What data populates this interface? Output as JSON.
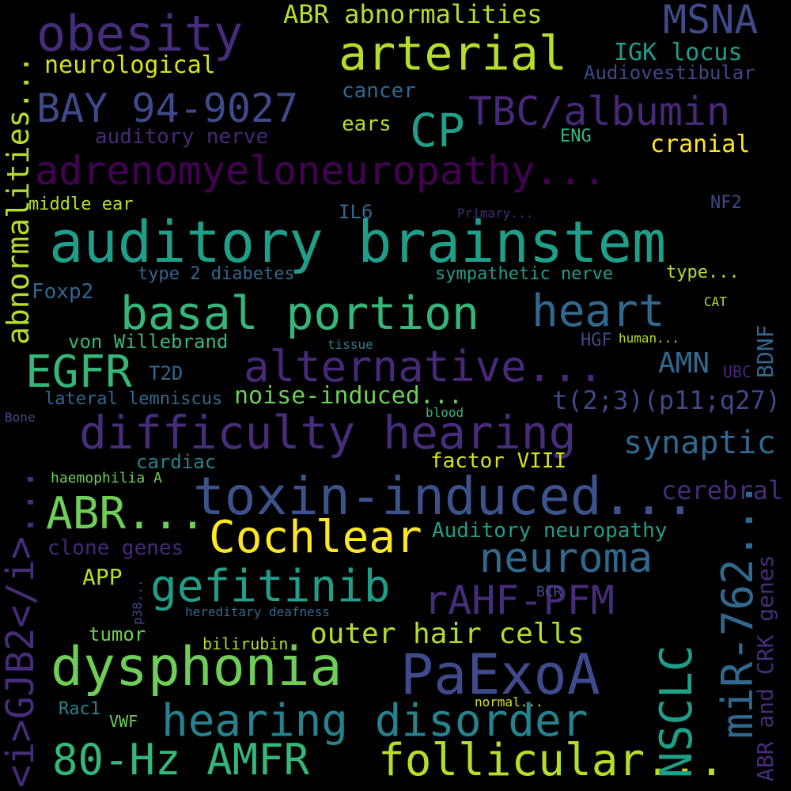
{
  "palette": {
    "purple": "#472c7a",
    "indigo": "#3e4a89",
    "blue": "#31688e",
    "teal": "#26828e",
    "teal_green": "#1f9e89",
    "green": "#35b779",
    "lime": "#6ece58",
    "yellow_green": "#b5de2b",
    "yellow": "#fde725",
    "dark_purple": "#440154"
  },
  "words": [
    {
      "id": "auditory-brainstem",
      "text": "auditory brainstem",
      "color": "#1f9e89"
    },
    {
      "id": "adrenomyeloneuropathy",
      "text": "adrenomyeloneuropathy...",
      "color": "#440154"
    },
    {
      "id": "toxin-induced",
      "text": "toxin-induced...",
      "color": "#3b528b"
    },
    {
      "id": "difficulty-hearing",
      "text": "difficulty hearing",
      "color": "#472c7a"
    },
    {
      "id": "basal-portion",
      "text": "basal portion",
      "color": "#35b779"
    },
    {
      "id": "alternative",
      "text": "alternative...",
      "color": "#482878"
    },
    {
      "id": "dysphonia",
      "text": "dysphonia",
      "color": "#6ece58"
    },
    {
      "id": "hearing-disorder",
      "text": "hearing disorder",
      "color": "#26828e"
    },
    {
      "id": "follicular",
      "text": "follicular...",
      "color": "#b5de2b"
    },
    {
      "id": "80hz-amfr",
      "text": "80-Hz AMFR",
      "color": "#35b779"
    },
    {
      "id": "paexoa",
      "text": "PaExoA",
      "color": "#3e4a89"
    },
    {
      "id": "obesity",
      "text": "obesity",
      "color": "#472c7a"
    },
    {
      "id": "arterial",
      "text": "arterial",
      "color": "#b5de2b"
    },
    {
      "id": "tbc-albumin",
      "text": "TBC/albumin",
      "color": "#482878"
    },
    {
      "id": "bay-94-9027",
      "text": "BAY 94-9027",
      "color": "#3e4a89"
    },
    {
      "id": "cp",
      "text": "CP",
      "color": "#1f9e89"
    },
    {
      "id": "msna",
      "text": "MSNA",
      "color": "#3e4a89"
    },
    {
      "id": "heart",
      "text": "heart",
      "color": "#31688e"
    },
    {
      "id": "egfr",
      "text": "EGFR",
      "color": "#35b779"
    },
    {
      "id": "gefitinib",
      "text": "gefitinib",
      "color": "#1f9e89"
    },
    {
      "id": "cochlear",
      "text": "Cochlear",
      "color": "#fde725"
    },
    {
      "id": "abr-dots",
      "text": "ABR...",
      "color": "#6ece58"
    },
    {
      "id": "neuroma",
      "text": "neuroma",
      "color": "#31688e"
    },
    {
      "id": "rahf-pfm",
      "text": "rAHF-PFM",
      "color": "#472c7a"
    },
    {
      "id": "outer-hair-cells",
      "text": "outer hair cells",
      "color": "#b5de2b"
    },
    {
      "id": "synaptic",
      "text": "synaptic",
      "color": "#31688e"
    },
    {
      "id": "abr-abnormalities",
      "text": "ABR abnormalities",
      "color": "#b5de2b"
    },
    {
      "id": "neurological",
      "text": "neurological",
      "color": "#d8e219"
    },
    {
      "id": "igk-locus",
      "text": "IGK locus",
      "color": "#1f9e89"
    },
    {
      "id": "audiovestibular",
      "text": "Audiovestibular",
      "color": "#3e4a89"
    },
    {
      "id": "cancer",
      "text": "cancer",
      "color": "#31688e"
    },
    {
      "id": "ears",
      "text": "ears",
      "color": "#b5de2b"
    },
    {
      "id": "auditory-nerve",
      "text": "auditory nerve",
      "color": "#482878"
    },
    {
      "id": "eng",
      "text": "ENG",
      "color": "#35b779"
    },
    {
      "id": "cranial",
      "text": "cranial",
      "color": "#fde725"
    },
    {
      "id": "middle-ear",
      "text": "middle ear",
      "color": "#b5de2b"
    },
    {
      "id": "il6",
      "text": "IL6",
      "color": "#31688e"
    },
    {
      "id": "primary",
      "text": "Primary...",
      "color": "#472c7a"
    },
    {
      "id": "nf2",
      "text": "NF2",
      "color": "#3e4a89"
    },
    {
      "id": "type-2-diabetes",
      "text": "type 2 diabetes",
      "color": "#31688e"
    },
    {
      "id": "sympathetic-nerve",
      "text": "sympathetic nerve",
      "color": "#1f9e89"
    },
    {
      "id": "type-dots",
      "text": "type...",
      "color": "#b5de2b"
    },
    {
      "id": "foxp2",
      "text": "Foxp2",
      "color": "#31688e"
    },
    {
      "id": "cat",
      "text": "CAT",
      "color": "#b5de2b"
    },
    {
      "id": "von-willebrand",
      "text": "von Willebrand",
      "color": "#35b779"
    },
    {
      "id": "tissue",
      "text": "tissue",
      "color": "#26828e"
    },
    {
      "id": "hgf",
      "text": "HGF",
      "color": "#3e4a89"
    },
    {
      "id": "human",
      "text": "human...",
      "color": "#b5de2b"
    },
    {
      "id": "amn",
      "text": "AMN",
      "color": "#31688e"
    },
    {
      "id": "t2d",
      "text": "T2D",
      "color": "#31688e"
    },
    {
      "id": "ubc",
      "text": "UBC",
      "color": "#482878"
    },
    {
      "id": "lateral-lemniscus",
      "text": "lateral lemniscus",
      "color": "#31688e"
    },
    {
      "id": "noise-induced",
      "text": "noise-induced...",
      "color": "#6ece58"
    },
    {
      "id": "t23",
      "text": "t(2;3)(p11;q27)",
      "color": "#3e4a89"
    },
    {
      "id": "bone",
      "text": "Bone",
      "color": "#3e4a89"
    },
    {
      "id": "blood",
      "text": "blood",
      "color": "#35b779"
    },
    {
      "id": "cardiac",
      "text": "cardiac",
      "color": "#26828e"
    },
    {
      "id": "factor-viii",
      "text": "factor VIII",
      "color": "#d8e219"
    },
    {
      "id": "haemophilia-a",
      "text": "haemophilia A",
      "color": "#6ece58"
    },
    {
      "id": "cerebral",
      "text": "cerebral",
      "color": "#472c7a"
    },
    {
      "id": "clone-genes",
      "text": "clone genes",
      "color": "#482878"
    },
    {
      "id": "auditory-neuropathy",
      "text": "Auditory neuropathy",
      "color": "#1f9e89"
    },
    {
      "id": "app",
      "text": "APP",
      "color": "#b5de2b"
    },
    {
      "id": "bcr",
      "text": "BCR",
      "color": "#3e4a89"
    },
    {
      "id": "hereditary-deafness",
      "text": "hereditary deafness",
      "color": "#31688e"
    },
    {
      "id": "tumor",
      "text": "tumor",
      "color": "#6ece58"
    },
    {
      "id": "bilirubin",
      "text": "bilirubin",
      "color": "#b5de2b"
    },
    {
      "id": "normal",
      "text": "normal...",
      "color": "#d8e219"
    },
    {
      "id": "rac1",
      "text": "Rac1",
      "color": "#26828e"
    },
    {
      "id": "vwf",
      "text": "VWF",
      "color": "#6ece58"
    },
    {
      "id": "abnormalities-v",
      "text": "abnormalities...",
      "color": "#b5de2b"
    },
    {
      "id": "gjb2-v",
      "text": "<i>GJB2</i>...",
      "color": "#472c7a"
    },
    {
      "id": "mir-762-v",
      "text": "miR-762...",
      "color": "#31688e"
    },
    {
      "id": "nsclc-v",
      "text": "NSCLC",
      "color": "#1f9e89"
    },
    {
      "id": "bdnf-v",
      "text": "BDNF",
      "color": "#31688e"
    },
    {
      "id": "abr-crk-v",
      "text": "ABR and CRK genes",
      "color": "#472c7a"
    },
    {
      "id": "p38-v",
      "text": "p38...",
      "color": "#3e4a89"
    }
  ]
}
